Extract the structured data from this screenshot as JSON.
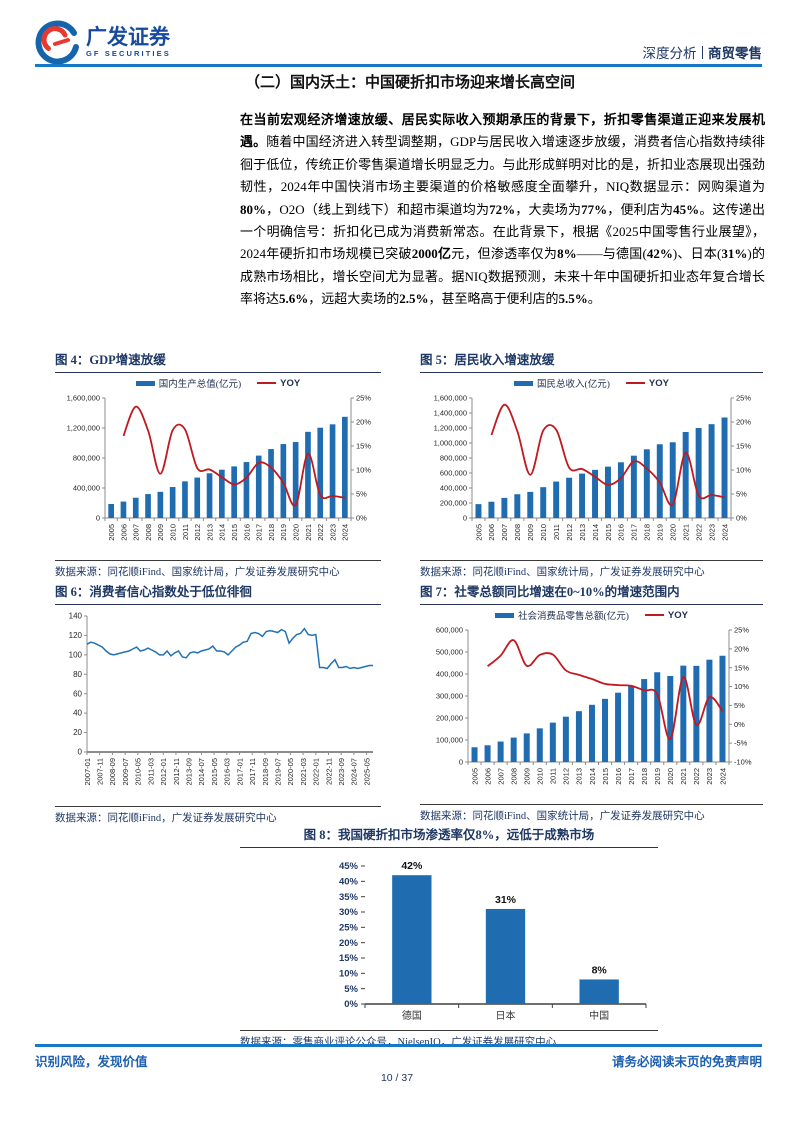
{
  "header": {
    "logo_cn": "广发证券",
    "logo_en": "GF SECURITIES",
    "tag_left": "深度分析",
    "tag_right": "商贸零售"
  },
  "section_title": "（二）国内沃土：中国硬折扣市场迎来增长高空间",
  "paragraph": {
    "runs": [
      {
        "t": "在当前宏观经济增速放缓、居民实际收入预期承压的背景下，折扣零售渠道正迎来发展机遇。",
        "b": true
      },
      {
        "t": "随着中国经济进入转型调整期，GDP与居民收入增速逐步放缓，消费者信心指数持续徘徊于低位，传统正价零售渠道增长明显乏力。与此形成鲜明对比的是，折扣业态展现出强劲韧性，2024年中国快消市场主要渠道的价格敏感度全面攀升，NIQ数据显示：网购渠道为",
        "b": false
      },
      {
        "t": "80%",
        "b": true
      },
      {
        "t": "，O2O（线上到线下）和超市渠道均为",
        "b": false
      },
      {
        "t": "72%",
        "b": true
      },
      {
        "t": "，大卖场为",
        "b": false
      },
      {
        "t": "77%",
        "b": true
      },
      {
        "t": "，便利店为",
        "b": false
      },
      {
        "t": "45%",
        "b": true
      },
      {
        "t": "。这传递出一个明确信号：折扣化已成为消费新常态。在此背景下，根据《2025中国零售行业展望》，2024年硬折扣市场规模已突破",
        "b": false
      },
      {
        "t": "2000亿",
        "b": true
      },
      {
        "t": "元，但渗透率仅为",
        "b": false
      },
      {
        "t": "8%",
        "b": true
      },
      {
        "t": "——与德国(",
        "b": false
      },
      {
        "t": "42%",
        "b": true
      },
      {
        "t": ")、日本(",
        "b": false
      },
      {
        "t": "31%",
        "b": true
      },
      {
        "t": ")的成熟市场相比，增长空间尤为显著。据NIQ数据预测，未来十年中国硬折扣业态年复合增长率将达",
        "b": false
      },
      {
        "t": "5.6%",
        "b": true
      },
      {
        "t": "，远超大卖场的",
        "b": false
      },
      {
        "t": "2.5%",
        "b": true
      },
      {
        "t": "，甚至略高于便利店的",
        "b": false
      },
      {
        "t": "5.5%",
        "b": true
      },
      {
        "t": "。",
        "b": false
      }
    ]
  },
  "colors": {
    "accent_blue": "#1778c8",
    "navy": "#1f3864",
    "bar_blue": "#1f6cb0",
    "line_red": "#c01920"
  },
  "chart_data": [
    {
      "id": "fig4",
      "type": "combo",
      "title": "图 4：GDP增速放缓",
      "source": "数据来源：同花顺iFind、国家统计局，广发证券发展研究中心",
      "categories": [
        "2005",
        "2006",
        "2007",
        "2008",
        "2009",
        "2010",
        "2011",
        "2012",
        "2013",
        "2014",
        "2015",
        "2016",
        "2017",
        "2018",
        "2019",
        "2020",
        "2021",
        "2022",
        "2023",
        "2024"
      ],
      "series": [
        {
          "name": "国内生产总值(亿元)",
          "type": "bar",
          "values": [
            187000,
            219000,
            270000,
            319000,
            349000,
            413000,
            489000,
            539000,
            596000,
            644000,
            688000,
            746000,
            832000,
            919000,
            986000,
            1013000,
            1149000,
            1204000,
            1249000,
            1349000
          ]
        },
        {
          "name": "YOY",
          "type": "line",
          "start_index": 1,
          "unit": "%",
          "values": [
            17.1,
            23.2,
            18.2,
            9.2,
            18.3,
            18.5,
            10.4,
            10.1,
            8.5,
            7.0,
            8.4,
            11.5,
            10.5,
            7.3,
            2.7,
            13.4,
            4.8,
            4.6,
            4.2
          ]
        }
      ],
      "ylim_left": [
        0,
        1600000
      ],
      "ytick_left": 400000,
      "ylim_right": [
        0,
        25
      ],
      "ytick_right": 5,
      "grid": false,
      "legend_position": "top",
      "colors": {
        "bar": "#1f6cb0",
        "line": "#c01920"
      }
    },
    {
      "id": "fig5",
      "type": "combo",
      "title": "图 5：居民收入增速放缓",
      "source": "数据来源：同花顺iFind、国家统计局，广发证券发展研究中心",
      "categories": [
        "2005",
        "2006",
        "2007",
        "2008",
        "2009",
        "2010",
        "2011",
        "2012",
        "2013",
        "2014",
        "2015",
        "2016",
        "2017",
        "2018",
        "2019",
        "2020",
        "2021",
        "2022",
        "2023",
        "2024"
      ],
      "series": [
        {
          "name": "国民总收入(亿元)",
          "type": "bar",
          "values": [
            185000,
            217000,
            268000,
            317000,
            348000,
            411000,
            486000,
            537000,
            592000,
            642000,
            685000,
            743000,
            831000,
            916000,
            983000,
            1010000,
            1147000,
            1200000,
            1251000,
            1340000
          ]
        },
        {
          "name": "YOY",
          "type": "line",
          "start_index": 1,
          "unit": "%",
          "values": [
            17.3,
            23.6,
            18.1,
            9.0,
            18.2,
            18.4,
            10.5,
            10.2,
            8.6,
            6.9,
            8.3,
            11.8,
            10.3,
            7.4,
            2.8,
            13.6,
            4.7,
            4.8,
            4.3
          ]
        }
      ],
      "ylim_left": [
        0,
        1600000
      ],
      "ytick_left": 200000,
      "ylim_right": [
        0,
        25
      ],
      "ytick_right": 5,
      "grid": false,
      "legend_position": "top",
      "colors": {
        "bar": "#1f6cb0",
        "line": "#c01920"
      }
    },
    {
      "id": "fig6",
      "type": "line",
      "title": "图 6：消费者信心指数处于低位徘徊",
      "source": "数据来源：同花顺iFind，广发证券发展研究中心",
      "x_start": "2007-01",
      "x_interval_months": 3,
      "x_tick_labels": [
        "2007-01",
        "2007-11",
        "2008-09",
        "2009-07",
        "2010-05",
        "2011-03",
        "2012-01",
        "2012-11",
        "2013-09",
        "2014-07",
        "2015-05",
        "2016-03",
        "2017-01",
        "2017-11",
        "2018-09",
        "2019-07",
        "2020-05",
        "2021-03",
        "2022-01",
        "2022-11",
        "2023-09",
        "2024-07",
        "2025-05"
      ],
      "x_label_step_months": 10,
      "series": [
        {
          "name": "消费者信心指数",
          "type": "line",
          "values": [
            111,
            113,
            112,
            110,
            108,
            104,
            101,
            100,
            101,
            102,
            103,
            104,
            106,
            108,
            104,
            105,
            107,
            105,
            103,
            100,
            100,
            104,
            99,
            102,
            104,
            98,
            97,
            102,
            103,
            102,
            104,
            105,
            106,
            109,
            104,
            104,
            103,
            100,
            104,
            108,
            110,
            113,
            114,
            122,
            123,
            122,
            119,
            124,
            125,
            124,
            123,
            126,
            124,
            112,
            117,
            121,
            122,
            127,
            121,
            120,
            121,
            87,
            87,
            86,
            91,
            95,
            87,
            87,
            88,
            86,
            87,
            86,
            87,
            88,
            89,
            89
          ]
        }
      ],
      "ylim": [
        0,
        140
      ],
      "ytick": 20,
      "grid": false,
      "colors": {
        "line": "#2471b3"
      }
    },
    {
      "id": "fig7",
      "type": "combo",
      "title": "图 7：社零总额同比增速在0~10%的增速范围内",
      "source": "数据来源：同花顺iFind、国家统计局，广发证券发展研究中心",
      "categories": [
        "2005",
        "2006",
        "2007",
        "2008",
        "2009",
        "2010",
        "2011",
        "2012",
        "2013",
        "2014",
        "2015",
        "2016",
        "2017",
        "2018",
        "2019",
        "2020",
        "2021",
        "2022",
        "2023",
        "2024"
      ],
      "series": [
        {
          "name": "社会消费品零售总额(亿元)",
          "type": "bar",
          "values": [
            67000,
            76000,
            93000,
            111000,
            130000,
            153000,
            179000,
            206000,
            231000,
            260000,
            287000,
            315000,
            345000,
            377000,
            408000,
            391000,
            438000,
            437000,
            465000,
            483000
          ]
        },
        {
          "name": "YOY",
          "type": "line",
          "start_index": 1,
          "unit": "%",
          "values": [
            15.4,
            18.2,
            22.3,
            15.5,
            18.4,
            18.5,
            14.3,
            13.1,
            12.0,
            10.7,
            10.4,
            10.2,
            9.0,
            8.0,
            -3.9,
            12.5,
            -0.2,
            7.2,
            3.5
          ]
        }
      ],
      "ylim_left": [
        0,
        600000
      ],
      "ytick_left": 100000,
      "ylim_right": [
        -10,
        25
      ],
      "ytick_right": 5,
      "grid": false,
      "legend_position": "top",
      "colors": {
        "bar": "#1f6cb0",
        "line": "#c01920"
      }
    },
    {
      "id": "fig8",
      "type": "bar",
      "title": "图 8：我国硬折扣市场渗透率仅8%，远低于成熟市场",
      "source": "数据来源：零售商业评论公众号，NielsenIQ，广发证券发展研究中心",
      "categories": [
        "德国",
        "日本",
        "中国"
      ],
      "values": [
        42,
        31,
        8
      ],
      "data_labels": [
        "42%",
        "31%",
        "8%"
      ],
      "ylim": [
        0,
        45
      ],
      "ytick": 5,
      "grid": false,
      "colors": {
        "bar": "#1f6cb0"
      }
    }
  ],
  "footer": {
    "left": "识别风险，发现价值",
    "right": "请务必阅读末页的免责声明",
    "page": "10 / 37"
  }
}
